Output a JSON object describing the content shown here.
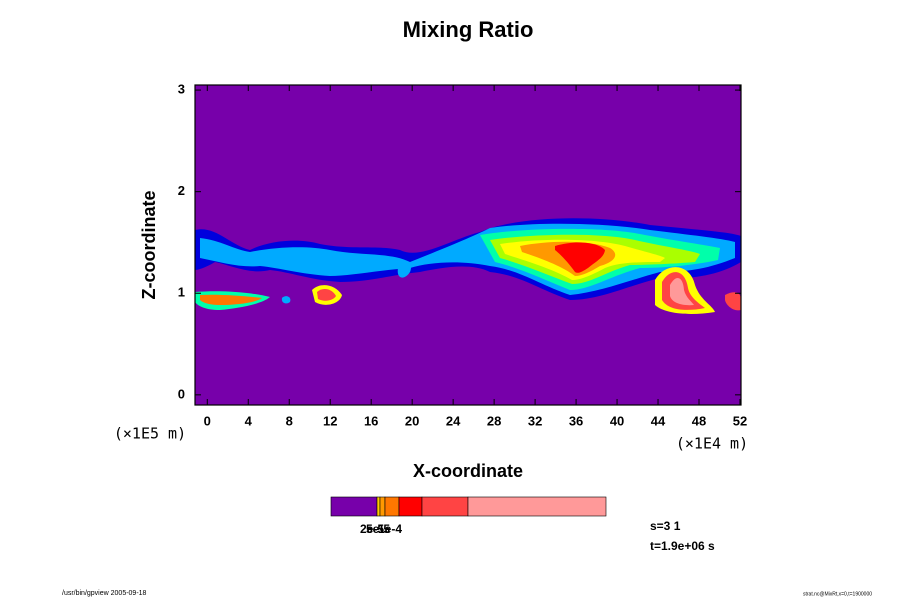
{
  "chart_data": {
    "type": "contour",
    "title": "Mixing Ratio",
    "xlabel": "X-coordinate",
    "ylabel": "Z-coordinate",
    "xunit": "(×1E4 m)",
    "yunit": "(×1E5 m)",
    "xlim": [
      -1.2,
      52.1
    ],
    "ylim": [
      -0.1,
      3.05
    ],
    "xticks": [
      0,
      4,
      8,
      12,
      16,
      20,
      24,
      28,
      32,
      36,
      40,
      44,
      48,
      52
    ],
    "yticks": [
      0,
      1,
      2,
      3
    ],
    "background_color": "#7700aa",
    "colorbar": {
      "colors": [
        "#7700aa",
        "#ffcc00",
        "#ff9900",
        "#ff7700",
        "#ff0000",
        "#ff4444",
        "#ff9999"
      ],
      "labels": [
        "2e-5",
        "5e-5",
        "1e-4"
      ]
    },
    "info": [
      "s=3 1",
      "t=1.9e+06 s"
    ],
    "footer_left": "/usr/bin/gpview 2005-09-18",
    "footer_right": "strat.nc@MixRt,x=0,t=1900000"
  }
}
